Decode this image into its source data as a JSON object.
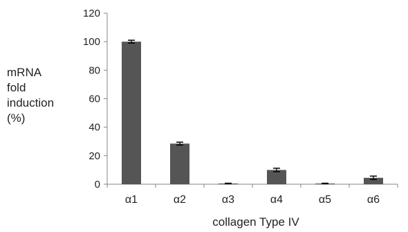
{
  "chart_data": {
    "type": "bar",
    "categories": [
      "α1",
      "α2",
      "α3",
      "α4",
      "α5",
      "α6"
    ],
    "values": [
      100,
      28.5,
      0.5,
      10,
      0.5,
      4.5
    ],
    "errors": [
      1,
      1,
      0.2,
      1.2,
      0.2,
      1.2
    ],
    "ylabel": "mRNA\nfold\ninduction\n(%)",
    "xlabel": "collagen Type IV",
    "ylim": [
      0,
      120
    ],
    "yticks": [
      0,
      20,
      40,
      60,
      80,
      100,
      120
    ],
    "bar_color": "#555555",
    "grid": false,
    "legend": "none"
  }
}
